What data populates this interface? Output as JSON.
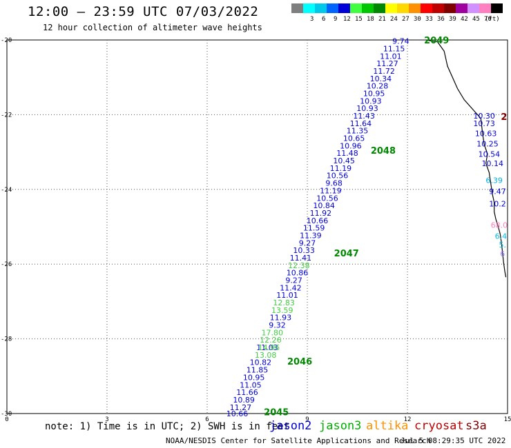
{
  "header": {
    "title": "12:00 – 23:59 UTC 07/03/2022",
    "subtitle": "12 hour collection of altimeter wave heights"
  },
  "color_scale": {
    "unit": "(ft)",
    "entries": [
      {
        "label": "",
        "color": "#7f7f7f"
      },
      {
        "label": "3",
        "color": "#00ffff"
      },
      {
        "label": "6",
        "color": "#00c8e8"
      },
      {
        "label": "9",
        "color": "#0064ff"
      },
      {
        "label": "12",
        "color": "#0000d8"
      },
      {
        "label": "15",
        "color": "#40ff40"
      },
      {
        "label": "18",
        "color": "#00c800"
      },
      {
        "label": "21",
        "color": "#008800"
      },
      {
        "label": "24",
        "color": "#ffff00"
      },
      {
        "label": "27",
        "color": "#ffd800"
      },
      {
        "label": "30",
        "color": "#ff9000"
      },
      {
        "label": "33",
        "color": "#ff0000"
      },
      {
        "label": "36",
        "color": "#c00000"
      },
      {
        "label": "39",
        "color": "#800000"
      },
      {
        "label": "42",
        "color": "#a000a0"
      },
      {
        "label": "45",
        "color": "#d090ff"
      },
      {
        "label": "70",
        "color": "#ff80c0"
      },
      {
        "label": "",
        "color": "#000000"
      }
    ]
  },
  "chart_data": {
    "type": "scatter",
    "xlim": [
      0,
      15
    ],
    "ylim": [
      -30,
      -20
    ],
    "x_ticks": [
      "0",
      "3",
      "6",
      "9",
      "12",
      "15"
    ],
    "y_ticks": [
      "-20",
      "-22",
      "-24",
      "-26",
      "-28",
      "-30"
    ],
    "grid": true,
    "track_labels": [
      {
        "label": "2049",
        "x": 12.5,
        "y": -20.0,
        "color": "#008800"
      },
      {
        "label": "2048",
        "x": 10.9,
        "y": -22.95,
        "color": "#008800"
      },
      {
        "label": "2047",
        "x": 9.8,
        "y": -25.7,
        "color": "#008800"
      },
      {
        "label": "2046",
        "x": 8.4,
        "y": -28.6,
        "color": "#008800"
      },
      {
        "label": "2045",
        "x": 7.7,
        "y": -29.95,
        "color": "#008800"
      },
      {
        "label": "2",
        "x": 14.8,
        "y": -22.05,
        "color": "#800000"
      }
    ],
    "series": [
      {
        "name": "jason2",
        "values": [
          {
            "x": 11.8,
            "y": -20.03,
            "label": "9.74",
            "color": "#0000d8"
          },
          {
            "x": 11.6,
            "y": -20.23,
            "label": "11.15",
            "color": "#0000d8"
          },
          {
            "x": 11.5,
            "y": -20.43,
            "label": "11.01",
            "color": "#0000d8"
          },
          {
            "x": 11.4,
            "y": -20.63,
            "label": "11.27",
            "color": "#0000d8"
          },
          {
            "x": 11.3,
            "y": -20.83,
            "label": "11.72",
            "color": "#0000d8"
          },
          {
            "x": 11.2,
            "y": -21.03,
            "label": "10.34",
            "color": "#0000d8"
          },
          {
            "x": 11.1,
            "y": -21.23,
            "label": "10.28",
            "color": "#0000d8"
          },
          {
            "x": 11.0,
            "y": -21.43,
            "label": "10.95",
            "color": "#0000d8"
          },
          {
            "x": 10.9,
            "y": -21.63,
            "label": "10.93",
            "color": "#0000d8"
          },
          {
            "x": 10.8,
            "y": -21.83,
            "label": "10.93",
            "color": "#0000d8"
          },
          {
            "x": 10.7,
            "y": -22.03,
            "label": "11.43",
            "color": "#0000d8"
          },
          {
            "x": 10.6,
            "y": -22.23,
            "label": "11.64",
            "color": "#0000d8"
          },
          {
            "x": 10.5,
            "y": -22.43,
            "label": "11.35",
            "color": "#0000d8"
          },
          {
            "x": 10.4,
            "y": -22.63,
            "label": "10.65",
            "color": "#0000d8"
          },
          {
            "x": 10.3,
            "y": -22.83,
            "label": "10.96",
            "color": "#0000d8"
          },
          {
            "x": 10.2,
            "y": -23.03,
            "label": "11.48",
            "color": "#0000d8"
          },
          {
            "x": 10.1,
            "y": -23.23,
            "label": "10.45",
            "color": "#0000d8"
          },
          {
            "x": 10.0,
            "y": -23.43,
            "label": "11.19",
            "color": "#0000d8"
          },
          {
            "x": 9.9,
            "y": -23.63,
            "label": "10.56",
            "color": "#0000d8"
          },
          {
            "x": 9.8,
            "y": -23.83,
            "label": "9.68",
            "color": "#0000d8"
          },
          {
            "x": 9.7,
            "y": -24.03,
            "label": "11.19",
            "color": "#0000d8"
          },
          {
            "x": 9.6,
            "y": -24.23,
            "label": "10.56",
            "color": "#0000d8"
          },
          {
            "x": 9.5,
            "y": -24.43,
            "label": "10.84",
            "color": "#0000d8"
          },
          {
            "x": 9.4,
            "y": -24.63,
            "label": "11.92",
            "color": "#0000d8"
          },
          {
            "x": 9.3,
            "y": -24.83,
            "label": "10.66",
            "color": "#0000d8"
          },
          {
            "x": 9.2,
            "y": -25.03,
            "label": "11.59",
            "color": "#0000d8"
          },
          {
            "x": 9.1,
            "y": -25.23,
            "label": "11.39",
            "color": "#0000d8"
          },
          {
            "x": 9.0,
            "y": -25.43,
            "label": "9.27",
            "color": "#0000d8"
          },
          {
            "x": 8.9,
            "y": -25.63,
            "label": "10.33",
            "color": "#0000d8"
          },
          {
            "x": 8.8,
            "y": -25.83,
            "label": "11.41",
            "color": "#0000d8"
          },
          {
            "x": 8.7,
            "y": -26.23,
            "label": "10.86",
            "color": "#0000d8"
          },
          {
            "x": 8.6,
            "y": -26.43,
            "label": "9.27",
            "color": "#0000d8"
          },
          {
            "x": 8.5,
            "y": -26.63,
            "label": "11.42",
            "color": "#0000d8"
          },
          {
            "x": 8.4,
            "y": -26.83,
            "label": "11.01",
            "color": "#0000d8"
          },
          {
            "x": 8.2,
            "y": -27.43,
            "label": "11.93",
            "color": "#0000d8"
          },
          {
            "x": 8.1,
            "y": -27.63,
            "label": "9.32",
            "color": "#0000d8"
          },
          {
            "x": 7.8,
            "y": -28.23,
            "label": "11.03",
            "color": "#0000d8"
          },
          {
            "x": 7.6,
            "y": -28.63,
            "label": "10.82",
            "color": "#0000d8"
          },
          {
            "x": 7.5,
            "y": -28.83,
            "label": "11.85",
            "color": "#0000d8"
          },
          {
            "x": 7.4,
            "y": -29.03,
            "label": "10.95",
            "color": "#0000d8"
          },
          {
            "x": 7.3,
            "y": -29.23,
            "label": "11.05",
            "color": "#0000d8"
          },
          {
            "x": 7.2,
            "y": -29.43,
            "label": "11.66",
            "color": "#0000d8"
          },
          {
            "x": 7.1,
            "y": -29.63,
            "label": "10.89",
            "color": "#0000d8"
          },
          {
            "x": 7.0,
            "y": -29.83,
            "label": "11.27",
            "color": "#0000d8"
          },
          {
            "x": 6.9,
            "y": -30.0,
            "label": "10.66",
            "color": "#0000d8"
          }
        ]
      },
      {
        "name": "jason3",
        "values": [
          {
            "x": 8.75,
            "y": -26.03,
            "label": "12.38",
            "color": "#40d040"
          },
          {
            "x": 8.3,
            "y": -27.03,
            "label": "12.83",
            "color": "#40d040"
          },
          {
            "x": 8.25,
            "y": -27.23,
            "label": "13.59",
            "color": "#40d040"
          },
          {
            "x": 7.95,
            "y": -27.83,
            "label": "17.80",
            "color": "#40d040"
          },
          {
            "x": 7.9,
            "y": -28.03,
            "label": "12.26",
            "color": "#40d040"
          },
          {
            "x": 7.85,
            "y": -28.23,
            "label": "14.96",
            "color": "#40d040"
          },
          {
            "x": 7.75,
            "y": -28.43,
            "label": "13.08",
            "color": "#40d040"
          }
        ]
      },
      {
        "name": "cryosat",
        "values": [
          {
            "x": 14.3,
            "y": -22.03,
            "label": "10.30",
            "color": "#0000d8"
          },
          {
            "x": 14.3,
            "y": -22.23,
            "label": "10.73",
            "color": "#0000d8"
          },
          {
            "x": 14.35,
            "y": -22.5,
            "label": "10.63",
            "color": "#0000d8"
          },
          {
            "x": 14.4,
            "y": -22.78,
            "label": "10.25",
            "color": "#0000d8"
          },
          {
            "x": 14.45,
            "y": -23.05,
            "label": "10.54",
            "color": "#0000d8"
          },
          {
            "x": 14.55,
            "y": -23.3,
            "label": "10.14",
            "color": "#0000d8"
          },
          {
            "x": 14.6,
            "y": -23.75,
            "label": "6.39",
            "color": "#00b0e0"
          },
          {
            "x": 14.7,
            "y": -24.05,
            "label": "9.47",
            "color": "#0000d8"
          },
          {
            "x": 14.7,
            "y": -24.38,
            "label": "10.2",
            "color": "#0000d8"
          },
          {
            "x": 14.75,
            "y": -24.95,
            "label": "68.0",
            "color": "#ff80c0"
          },
          {
            "x": 14.8,
            "y": -25.25,
            "label": "6.4",
            "color": "#00c0e8"
          },
          {
            "x": 14.85,
            "y": -25.48,
            "label": "5.",
            "color": "#00c0e8"
          },
          {
            "x": 14.85,
            "y": -25.72,
            "label": "6",
            "color": "#a080ff"
          }
        ]
      }
    ],
    "coastline": [
      [
        12.55,
        -20.0
      ],
      [
        12.9,
        -20.05
      ],
      [
        13.1,
        -20.3
      ],
      [
        13.2,
        -20.7
      ],
      [
        13.35,
        -21.0
      ],
      [
        13.5,
        -21.3
      ],
      [
        13.7,
        -21.6
      ],
      [
        14.0,
        -21.9
      ],
      [
        14.2,
        -22.1
      ],
      [
        14.25,
        -22.5
      ],
      [
        14.3,
        -22.8
      ],
      [
        14.4,
        -23.05
      ],
      [
        14.35,
        -23.3
      ],
      [
        14.45,
        -23.55
      ],
      [
        14.5,
        -23.85
      ],
      [
        14.55,
        -24.15
      ],
      [
        14.6,
        -24.35
      ],
      [
        14.6,
        -24.6
      ],
      [
        14.65,
        -24.8
      ],
      [
        14.72,
        -25.0
      ],
      [
        14.78,
        -25.2
      ],
      [
        14.82,
        -25.45
      ],
      [
        14.85,
        -25.7
      ],
      [
        14.88,
        -25.95
      ],
      [
        14.92,
        -26.2
      ],
      [
        14.95,
        -26.35
      ]
    ]
  },
  "footer": {
    "note": "note:  1) Time is in UTC; 2) SWH is in feet",
    "legend": [
      {
        "label": "jason2",
        "color": "#0000d8"
      },
      {
        "label": "jason3",
        "color": "#00b000"
      },
      {
        "label": "altika",
        "color": "#ff9000"
      },
      {
        "label": "cryosat",
        "color": "#c00000"
      },
      {
        "label": "s3a",
        "color": "#800000"
      }
    ],
    "credit": "NOAA/NESDIS Center for Satellite Applications and Research",
    "timestamp": "Jul  5 08:29:35 UTC 2022"
  }
}
